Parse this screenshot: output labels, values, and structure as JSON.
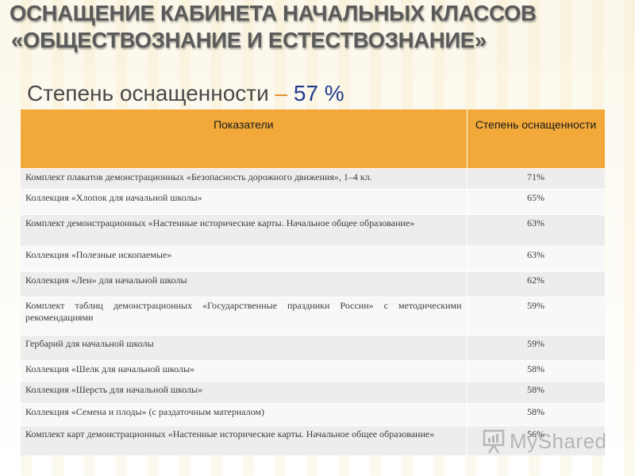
{
  "title": {
    "line1": "Оснащение кабинета начальных классов",
    "line2": "«обществознание и естествознание»"
  },
  "subtitle": {
    "label": "Степень оснащенности",
    "dash": "–",
    "value": "57 %"
  },
  "table": {
    "headers": [
      "Показатели",
      "Степень оснащенности"
    ],
    "rows": [
      {
        "item": "Комплект плакатов демонстрационных «Безопасность дорожного движения», 1–4 кл.",
        "value": "71%"
      },
      {
        "item": "Коллекция «Хлопок для начальной школы»",
        "value": "65%"
      },
      {
        "item": "Комплект демонстрационных «Настенные исторические карты. Начальное общее образование»",
        "value": "63%"
      },
      {
        "item": "Коллекция «Полезные ископаемые»",
        "value": "63%"
      },
      {
        "item": "Коллекция «Лен» для начальной школы",
        "value": "62%"
      },
      {
        "item": "Комплект таблиц демонстрационных «Государственные праздники России» с методическими рекомендациями",
        "value": "59%"
      },
      {
        "item": "Гербарий для начальной школы",
        "value": "59%"
      },
      {
        "item": "Коллекция «Шелк для начальной школы»",
        "value": "58%"
      },
      {
        "item": "Коллекция «Шерсть для начальной школы»",
        "value": "58%"
      },
      {
        "item": "Коллекция «Семена и плоды» (с раздаточным материалом)",
        "value": "58%"
      },
      {
        "item": "Комплект карт демонстрационных «Настенные исторические карты. Начальное общее образование»",
        "value": "56%"
      }
    ]
  },
  "watermark": {
    "text": "MyShared",
    "icon": "presentation-board-icon"
  },
  "colors": {
    "header_bg": "#f2a93a",
    "title_text": "#5a5a5a",
    "subtitle_value": "#1f3b8c",
    "subtitle_dash": "#e08a1e"
  }
}
